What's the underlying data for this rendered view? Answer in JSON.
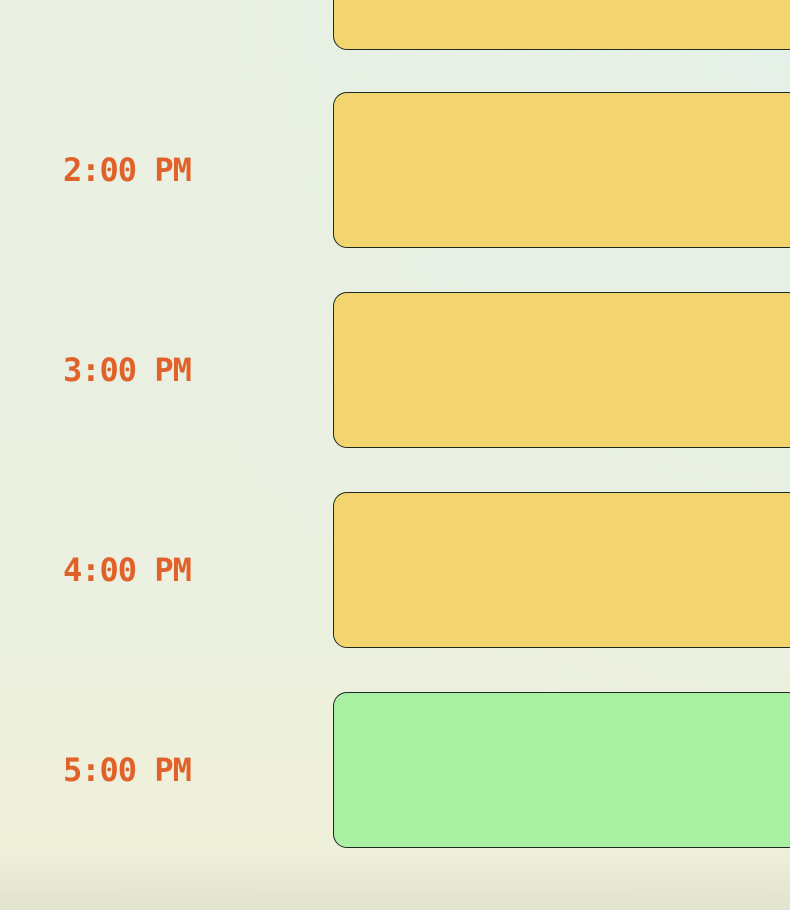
{
  "colors": {
    "time_label": "#e0622a",
    "busy_block": "#f2d56f",
    "free_block": "#a9f0a2",
    "block_border": "#1f2a25"
  },
  "schedule": {
    "slots": [
      {
        "time": "",
        "status": "busy"
      },
      {
        "time": "2:00 PM",
        "status": "busy"
      },
      {
        "time": "3:00 PM",
        "status": "busy"
      },
      {
        "time": "4:00 PM",
        "status": "busy"
      },
      {
        "time": "5:00 PM",
        "status": "free"
      }
    ]
  }
}
